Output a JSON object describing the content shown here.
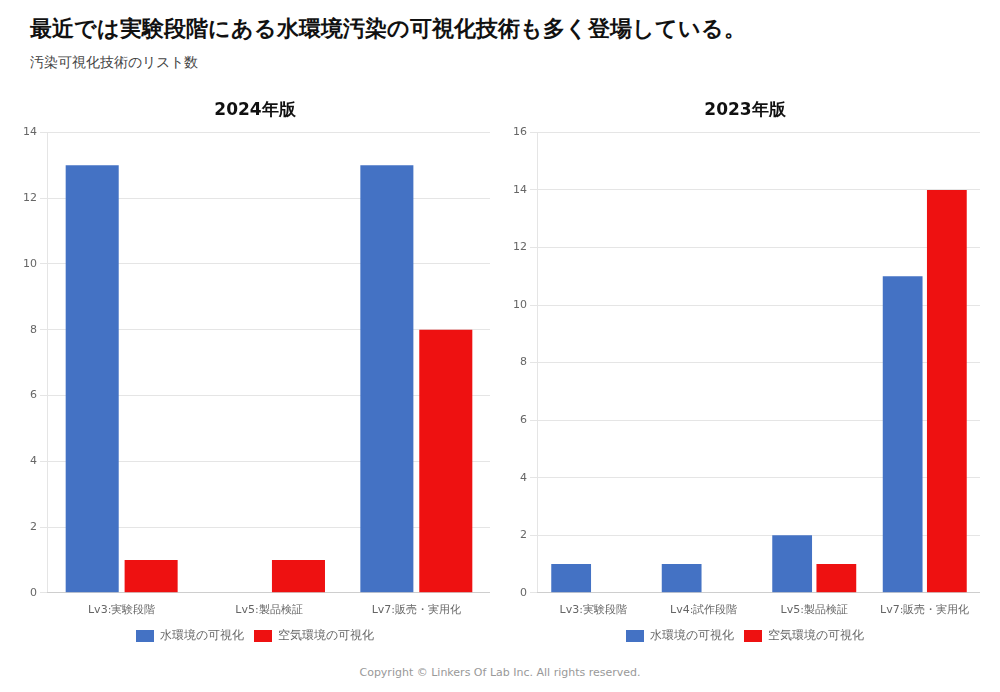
{
  "title": "最近では実験段階にある水環境汚染の可視化技術も多く登場している。",
  "subtitle": "汚染可視化技術のリスト数",
  "annotations": [
    "Copyright © Linkers Of Lab Inc. All rights reserved."
  ],
  "chart_data": [
    {
      "type": "bar",
      "title": "2024年版",
      "categories": [
        "Lv3:実験段階",
        "Lv5:製品検証",
        "Lv7:販売・実用化"
      ],
      "series": [
        {
          "name": "水環境の可視化",
          "color": "#4472c4",
          "values": [
            13,
            0,
            13
          ]
        },
        {
          "name": "空気環境の可視化",
          "color": "#ee1111",
          "values": [
            1,
            1,
            8
          ]
        }
      ],
      "ylim": [
        0,
        14
      ],
      "yticks": [
        0,
        2,
        4,
        6,
        8,
        10,
        12,
        14
      ],
      "grid": true,
      "legend": "bottom"
    },
    {
      "type": "bar",
      "title": "2023年版",
      "categories": [
        "Lv3:実験段階",
        "Lv4:試作段階",
        "Lv5:製品検証",
        "Lv7:販売・実用化"
      ],
      "series": [
        {
          "name": "水環境の可視化",
          "color": "#4472c4",
          "values": [
            1,
            1,
            2,
            11
          ]
        },
        {
          "name": "空気環境の可視化",
          "color": "#ee1111",
          "values": [
            0,
            0,
            1,
            14
          ]
        }
      ],
      "ylim": [
        0,
        16
      ],
      "yticks": [
        0,
        2,
        4,
        6,
        8,
        10,
        12,
        14,
        16
      ],
      "grid": true,
      "legend": "bottom"
    }
  ]
}
